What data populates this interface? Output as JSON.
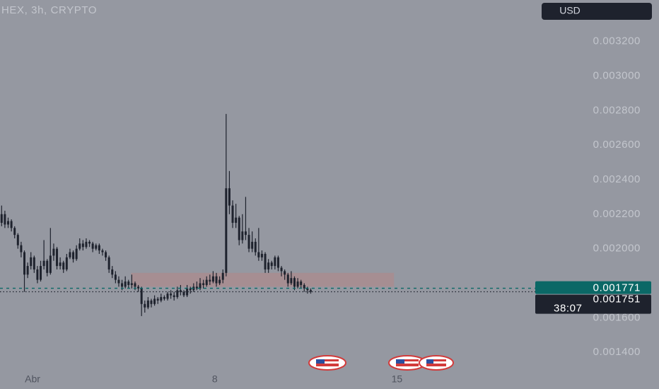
{
  "chart_data": {
    "type": "candlestick",
    "title": "HEX, 3h, CRYPTO",
    "currency": "USD",
    "color": "#1e222d",
    "open": [
      0.00215,
      0.0022,
      0.00214,
      0.00216,
      0.00212,
      0.00208,
      0.00202,
      0.00198,
      0.00185,
      0.0019,
      0.00195,
      0.00188,
      0.00182,
      0.0019,
      0.00193,
      0.00186,
      0.00196,
      0.002,
      0.0019,
      0.00192,
      0.00188,
      0.00195,
      0.00198,
      0.00194,
      0.002,
      0.00203,
      0.00201,
      0.00204,
      0.00203,
      0.002,
      0.00202,
      0.00199,
      0.00198,
      0.00195,
      0.00188,
      0.00185,
      0.00182,
      0.0018,
      0.00178,
      0.00181,
      0.00179,
      0.0018,
      0.00178,
      0.00177,
      0.00168,
      0.00166,
      0.0017,
      0.00168,
      0.00171,
      0.0017,
      0.00172,
      0.00171,
      0.00174,
      0.00173,
      0.00172,
      0.00176,
      0.00175,
      0.00173,
      0.00177,
      0.00176,
      0.00178,
      0.00177,
      0.0018,
      0.00179,
      0.00182,
      0.00181,
      0.00184,
      0.0018,
      0.00182,
      0.00186,
      0.00235,
      0.00225,
      0.00215,
      0.00218,
      0.00205,
      0.0021,
      0.00208,
      0.002,
      0.00204,
      0.00198,
      0.00195,
      0.00197,
      0.00188,
      0.00192,
      0.0019,
      0.00195,
      0.00189,
      0.00187,
      0.00185,
      0.0018,
      0.00183,
      0.00178,
      0.00181,
      0.00179,
      0.00177,
      0.00176
    ],
    "high": [
      0.00225,
      0.00222,
      0.00218,
      0.00217,
      0.00213,
      0.00209,
      0.00204,
      0.00199,
      0.00192,
      0.00198,
      0.00196,
      0.0019,
      0.00193,
      0.00205,
      0.00194,
      0.00212,
      0.00203,
      0.00201,
      0.00195,
      0.00193,
      0.00197,
      0.002,
      0.00199,
      0.00202,
      0.00206,
      0.00205,
      0.00206,
      0.00205,
      0.00204,
      0.00203,
      0.00203,
      0.002,
      0.00199,
      0.00196,
      0.0019,
      0.00187,
      0.00184,
      0.00182,
      0.00184,
      0.00182,
      0.00185,
      0.00181,
      0.00179,
      0.00178,
      0.0017,
      0.00172,
      0.00171,
      0.00173,
      0.00172,
      0.00174,
      0.00173,
      0.00175,
      0.00176,
      0.00175,
      0.00178,
      0.00179,
      0.00176,
      0.00179,
      0.00178,
      0.0018,
      0.00181,
      0.00183,
      0.00182,
      0.00184,
      0.00185,
      0.00187,
      0.00186,
      0.00184,
      0.00188,
      0.00278,
      0.00245,
      0.00228,
      0.00226,
      0.00219,
      0.0022,
      0.0023,
      0.00212,
      0.0021,
      0.00206,
      0.00212,
      0.00199,
      0.00198,
      0.00194,
      0.00193,
      0.00196,
      0.00196,
      0.0019,
      0.00188,
      0.00186,
      0.00187,
      0.00184,
      0.00183,
      0.00182,
      0.0018,
      0.00178,
      0.00177
    ],
    "low": [
      0.00213,
      0.00212,
      0.00212,
      0.0021,
      0.00206,
      0.002,
      0.00195,
      0.00175,
      0.00183,
      0.00188,
      0.00186,
      0.0018,
      0.00181,
      0.00188,
      0.00184,
      0.00185,
      0.00193,
      0.00188,
      0.00188,
      0.00186,
      0.00187,
      0.00194,
      0.00192,
      0.00193,
      0.00199,
      0.00199,
      0.002,
      0.00201,
      0.00198,
      0.00199,
      0.00197,
      0.00196,
      0.00193,
      0.00186,
      0.00183,
      0.0018,
      0.00178,
      0.00176,
      0.00177,
      0.00177,
      0.00177,
      0.00176,
      0.00175,
      0.00161,
      0.00163,
      0.00165,
      0.00166,
      0.00167,
      0.00168,
      0.00169,
      0.0017,
      0.0017,
      0.00171,
      0.0017,
      0.00171,
      0.00173,
      0.00172,
      0.00172,
      0.00174,
      0.00175,
      0.00176,
      0.00176,
      0.00177,
      0.00178,
      0.00179,
      0.0018,
      0.00178,
      0.00179,
      0.0018,
      0.00184,
      0.0022,
      0.00212,
      0.00212,
      0.00202,
      0.00203,
      0.00205,
      0.00198,
      0.00198,
      0.00196,
      0.00193,
      0.00193,
      0.00186,
      0.00186,
      0.00188,
      0.00188,
      0.00187,
      0.00184,
      0.00182,
      0.00178,
      0.00179,
      0.00176,
      0.00177,
      0.00177,
      0.00175,
      0.00174,
      0.00174
    ],
    "close": [
      0.0022,
      0.00214,
      0.00216,
      0.00212,
      0.00208,
      0.00202,
      0.00198,
      0.00185,
      0.0019,
      0.00195,
      0.00188,
      0.00182,
      0.0019,
      0.00193,
      0.00186,
      0.00196,
      0.002,
      0.0019,
      0.00192,
      0.00188,
      0.00195,
      0.00198,
      0.00194,
      0.002,
      0.00203,
      0.00201,
      0.00204,
      0.00203,
      0.002,
      0.00202,
      0.00199,
      0.00198,
      0.00195,
      0.00188,
      0.00185,
      0.00182,
      0.0018,
      0.00178,
      0.00181,
      0.00179,
      0.0018,
      0.00178,
      0.00177,
      0.00168,
      0.00166,
      0.0017,
      0.00168,
      0.00171,
      0.0017,
      0.00172,
      0.00171,
      0.00174,
      0.00173,
      0.00172,
      0.00176,
      0.00175,
      0.00173,
      0.00177,
      0.00176,
      0.00178,
      0.00177,
      0.0018,
      0.00179,
      0.00182,
      0.00181,
      0.00184,
      0.0018,
      0.00182,
      0.00186,
      0.00235,
      0.00225,
      0.00215,
      0.00218,
      0.00205,
      0.0021,
      0.00208,
      0.002,
      0.00204,
      0.00198,
      0.00195,
      0.00197,
      0.00188,
      0.00192,
      0.0019,
      0.00195,
      0.00189,
      0.00187,
      0.00185,
      0.0018,
      0.00183,
      0.00178,
      0.00181,
      0.00179,
      0.00177,
      0.00176,
      0.001751
    ],
    "xlim": [
      -0.5,
      164
    ],
    "ylim": [
      0.0013,
      0.00344
    ],
    "xticks": [
      {
        "value": 9.5,
        "label": "Abr"
      },
      {
        "value": 65.5,
        "label": "8"
      },
      {
        "value": 121.5,
        "label": "15"
      }
    ],
    "yticks": [
      {
        "value": 0.0014,
        "label": "0.001400"
      },
      {
        "value": 0.0016,
        "label": "0.001600"
      },
      {
        "value": 0.002,
        "label": "0.002000"
      },
      {
        "value": 0.0022,
        "label": "0.002200"
      },
      {
        "value": 0.0024,
        "label": "0.002400"
      },
      {
        "value": 0.0026,
        "label": "0.002600"
      },
      {
        "value": 0.0028,
        "label": "0.002800"
      },
      {
        "value": 0.003,
        "label": "0.003000"
      },
      {
        "value": 0.0032,
        "label": "0.003200"
      }
    ],
    "zone": {
      "x": [
        39.8,
        120.6
      ],
      "y": [
        0.00178,
        0.00186
      ],
      "color": "#a98c8f"
    },
    "price_lines": [
      {
        "value": 0.001771,
        "label": "0.001771",
        "color": "#0b6866"
      },
      {
        "value": 0.001751,
        "label": "0.001751",
        "countdown": "38:07",
        "color": "#1e222d"
      }
    ]
  }
}
